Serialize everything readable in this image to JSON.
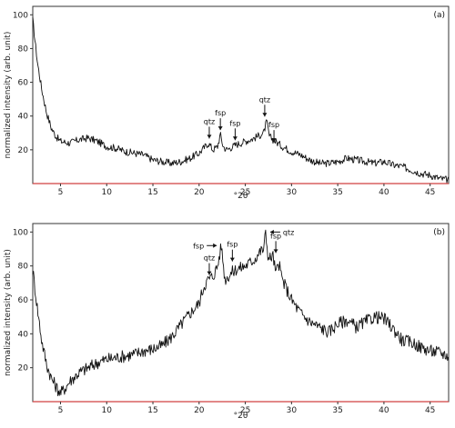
{
  "chart_data": [
    {
      "type": "line",
      "panel_label": "(a)",
      "xlabel": "°2θ",
      "ylabel": "normalized intensity (arb. unit)",
      "xlim": [
        2,
        47
      ],
      "ylim": [
        0,
        105
      ],
      "xticks": [
        5,
        10,
        15,
        20,
        25,
        30,
        35,
        40,
        45
      ],
      "yticks": [
        20,
        40,
        60,
        80,
        100
      ],
      "grid": false,
      "series": [
        {
          "color": "#111111",
          "x": [
            2,
            2.5,
            3,
            3.5,
            4,
            4.5,
            5,
            6,
            7,
            8,
            9,
            10,
            11,
            12,
            13,
            14,
            15,
            16,
            17,
            18,
            19,
            20,
            20.5,
            21,
            21.5,
            22,
            22.3,
            22.6,
            23,
            24,
            25,
            26,
            27,
            27.3,
            27.6,
            28,
            29,
            30,
            31,
            32,
            33,
            34,
            35,
            36,
            37,
            38,
            39,
            40,
            41,
            42,
            43,
            44,
            45,
            46,
            47
          ],
          "y": [
            97,
            72,
            55,
            42,
            33,
            28,
            25,
            24,
            26,
            27,
            25,
            22,
            21,
            19,
            18,
            17,
            14,
            13,
            12,
            13,
            15,
            18,
            21,
            24,
            20,
            22,
            29,
            22,
            20,
            23,
            25,
            27,
            30,
            37,
            28,
            26,
            22,
            19,
            17,
            14,
            12,
            12,
            13,
            15,
            14,
            13,
            12,
            13,
            11,
            10,
            8,
            6,
            5,
            3,
            2
          ]
        }
      ],
      "annotations": [
        {
          "text": "qtz",
          "x": 21.1,
          "y": 24
        },
        {
          "text": "fsp",
          "x": 22.3,
          "y": 29
        },
        {
          "text": "fsp",
          "x": 23.9,
          "y": 23
        },
        {
          "text": "qtz",
          "x": 27.1,
          "y": 37
        },
        {
          "text": "fsp",
          "x": 28.1,
          "y": 22
        }
      ]
    },
    {
      "type": "line",
      "panel_label": "(b)",
      "xlabel": "°2θ",
      "ylabel": "normalized intensity (arb. unit)",
      "xlim": [
        2,
        47
      ],
      "ylim": [
        0,
        105
      ],
      "xticks": [
        5,
        10,
        15,
        20,
        25,
        30,
        35,
        40,
        45
      ],
      "yticks": [
        20,
        40,
        60,
        80,
        100
      ],
      "grid": false,
      "series": [
        {
          "color": "#111111",
          "x": [
            2,
            2.5,
            3,
            3.5,
            4,
            4.5,
            5,
            5.5,
            6,
            7,
            8,
            9,
            10,
            11,
            12,
            13,
            14,
            15,
            16,
            17,
            18,
            19,
            20,
            20.5,
            21,
            21.5,
            22,
            22.4,
            22.8,
            23.5,
            24,
            25,
            26,
            26.5,
            27,
            27.2,
            27.5,
            28,
            28.3,
            28.6,
            29,
            30,
            31,
            32,
            33,
            34,
            35,
            36,
            37,
            38,
            39,
            40,
            41,
            42,
            43,
            44,
            45,
            46,
            47
          ],
          "y": [
            78,
            55,
            35,
            22,
            14,
            9,
            5,
            8,
            12,
            17,
            20,
            23,
            25,
            26,
            27,
            28,
            30,
            31,
            33,
            38,
            45,
            52,
            58,
            68,
            72,
            74,
            80,
            92,
            72,
            76,
            78,
            80,
            84,
            88,
            90,
            100,
            84,
            86,
            75,
            82,
            72,
            60,
            52,
            47,
            44,
            41,
            46,
            48,
            44,
            47,
            50,
            49,
            43,
            36,
            35,
            32,
            30,
            29,
            27
          ]
        }
      ],
      "annotations": [
        {
          "text": "qtz",
          "x": 21.1,
          "y": 72,
          "dir": "down"
        },
        {
          "text": "fsp",
          "x": 22.4,
          "y": 92,
          "dir": "right"
        },
        {
          "text": "fsp",
          "x": 23.6,
          "y": 80,
          "dir": "down"
        },
        {
          "text": "qtz",
          "x": 27.2,
          "y": 100,
          "dir": "left"
        },
        {
          "text": "fsp",
          "x": 28.3,
          "y": 85,
          "dir": "down"
        }
      ]
    }
  ]
}
